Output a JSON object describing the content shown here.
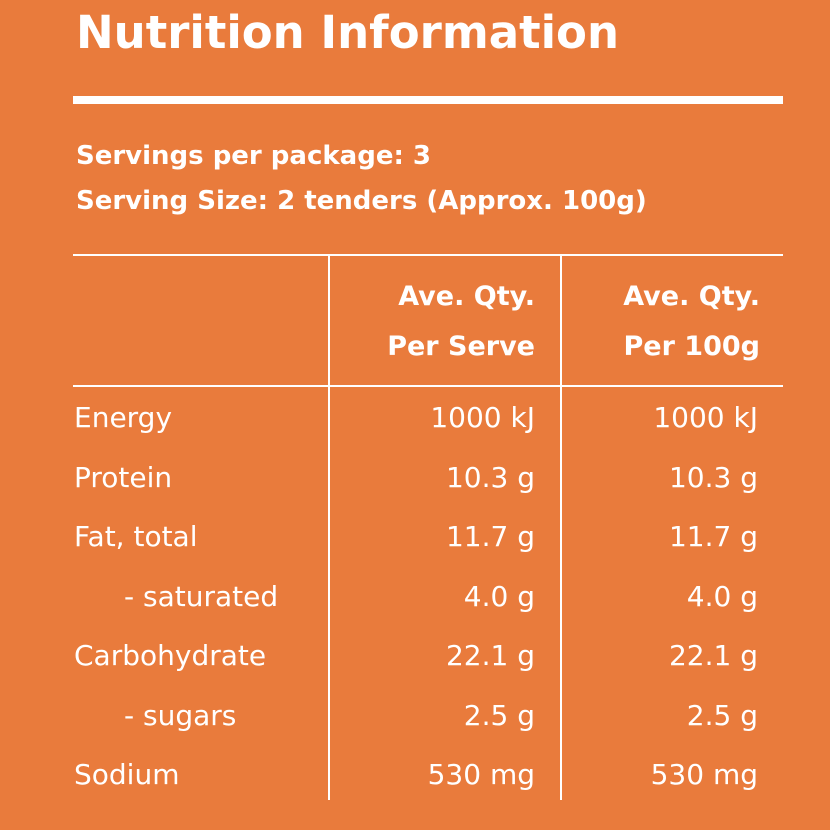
{
  "title": "Nutrition Information",
  "servings_per_package": "Servings per package: 3",
  "serving_size": "Serving Size: 2 tenders (Approx. 100g)",
  "columns": {
    "per_serve": [
      "Ave. Qty.",
      "Per Serve"
    ],
    "per_100g": [
      "Ave. Qty.",
      "Per 100g"
    ]
  },
  "rows": [
    {
      "label": "Energy",
      "per_serve": "1000 kJ",
      "per_100g": "1000 kJ"
    },
    {
      "label": "Protein",
      "per_serve": "10.3 g",
      "per_100g": "10.3 g"
    },
    {
      "label": "Fat, total",
      "per_serve": "11.7 g",
      "per_100g": "11.7 g"
    },
    {
      "label": "- saturated",
      "per_serve": "4.0 g",
      "per_100g": "4.0 g"
    },
    {
      "label": "Carbohydrate",
      "per_serve": "22.1 g",
      "per_100g": "22.1 g"
    },
    {
      "label": "- sugars",
      "per_serve": "2.5 g",
      "per_100g": "2.5 g"
    },
    {
      "label": "Sodium",
      "per_serve": "530 mg",
      "per_100g": "530 mg"
    }
  ],
  "colors": {
    "background": "#E97B3C",
    "text": "#FFFFFF"
  }
}
